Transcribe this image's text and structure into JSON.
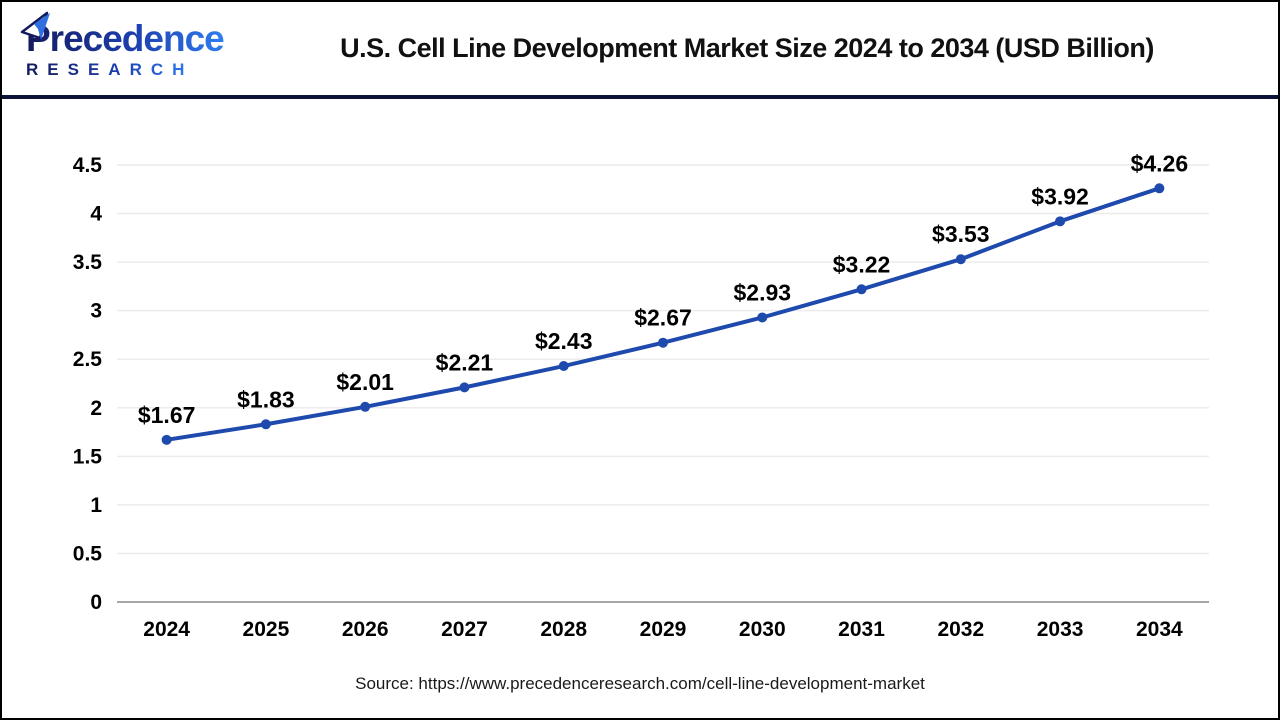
{
  "header": {
    "logo": {
      "title": "Precedence",
      "subtitle": "RESEARCH",
      "navy_color": "#141a5e",
      "blue_color": "#2e7ef0"
    }
  },
  "chart_data": {
    "type": "line",
    "title": "U.S. Cell Line Development Market Size 2024 to 2034 (USD Billion)",
    "categories": [
      "2024",
      "2025",
      "2026",
      "2027",
      "2028",
      "2029",
      "2030",
      "2031",
      "2032",
      "2033",
      "2034"
    ],
    "values": [
      1.67,
      1.83,
      2.01,
      2.21,
      2.43,
      2.67,
      2.93,
      3.22,
      3.53,
      3.92,
      4.26
    ],
    "labels": [
      "$1.67",
      "$1.83",
      "$2.01",
      "$2.21",
      "$2.43",
      "$2.67",
      "$2.93",
      "$3.22",
      "$3.53",
      "$3.92",
      "$4.26"
    ],
    "xlabel": "",
    "ylabel": "",
    "ylim": [
      0,
      4.5
    ],
    "yticks": [
      0,
      0.5,
      1,
      1.5,
      2,
      2.5,
      3,
      3.5,
      4,
      4.5
    ],
    "grid": "horizontal",
    "legend": "none",
    "line_color": "#1f4aad",
    "gridline_color": "#ececec",
    "axis_line_color": "#a6a6a6",
    "label_color": "#000000"
  },
  "footer": {
    "source": "Source: https://www.precedenceresearch.com/cell-line-development-market"
  }
}
